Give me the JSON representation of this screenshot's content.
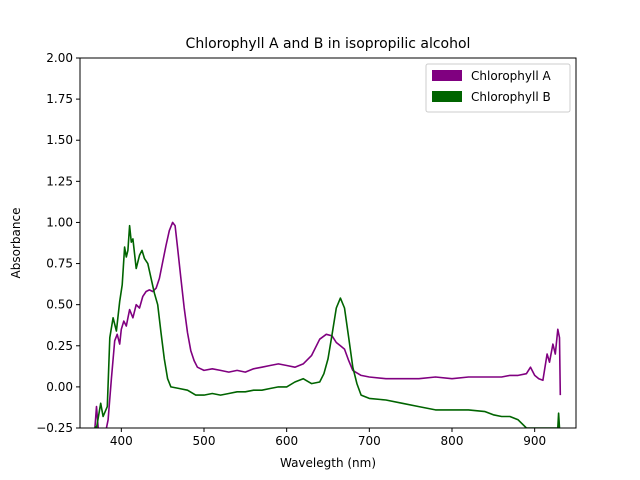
{
  "chart_data": {
    "type": "line",
    "title": "Chlorophyll A and B in isopropilic alcohol",
    "xlabel": "Wavelegth (nm)",
    "ylabel": "Absorbance",
    "xlim": [
      350,
      950
    ],
    "ylim": [
      -0.25,
      2.0
    ],
    "xticks": [
      400,
      500,
      600,
      700,
      800,
      900
    ],
    "yticks": [
      -0.25,
      0.0,
      0.25,
      0.5,
      0.75,
      1.0,
      1.25,
      1.5,
      1.75,
      2.0
    ],
    "ytick_labels": [
      "−0.25",
      "0.00",
      "0.25",
      "0.50",
      "0.75",
      "1.00",
      "1.25",
      "1.50",
      "1.75",
      "2.00"
    ],
    "grid": false,
    "legend_position": "top-right",
    "series": [
      {
        "name": "Chlorophyll A",
        "color": "#800080",
        "points": [
          [
            368,
            -0.25
          ],
          [
            370,
            -0.12
          ],
          [
            372,
            -0.25
          ],
          [
            380,
            -0.3
          ],
          [
            384,
            -0.2
          ],
          [
            388,
            0.05
          ],
          [
            392,
            0.28
          ],
          [
            395,
            0.32
          ],
          [
            398,
            0.26
          ],
          [
            400,
            0.35
          ],
          [
            403,
            0.4
          ],
          [
            406,
            0.37
          ],
          [
            410,
            0.47
          ],
          [
            414,
            0.42
          ],
          [
            418,
            0.5
          ],
          [
            422,
            0.48
          ],
          [
            426,
            0.55
          ],
          [
            430,
            0.58
          ],
          [
            434,
            0.59
          ],
          [
            438,
            0.58
          ],
          [
            442,
            0.6
          ],
          [
            446,
            0.66
          ],
          [
            450,
            0.76
          ],
          [
            454,
            0.86
          ],
          [
            458,
            0.95
          ],
          [
            462,
            1.0
          ],
          [
            465,
            0.98
          ],
          [
            468,
            0.85
          ],
          [
            472,
            0.66
          ],
          [
            476,
            0.48
          ],
          [
            480,
            0.33
          ],
          [
            484,
            0.22
          ],
          [
            488,
            0.16
          ],
          [
            492,
            0.12
          ],
          [
            496,
            0.11
          ],
          [
            500,
            0.1
          ],
          [
            510,
            0.11
          ],
          [
            520,
            0.1
          ],
          [
            530,
            0.09
          ],
          [
            540,
            0.1
          ],
          [
            550,
            0.09
          ],
          [
            560,
            0.11
          ],
          [
            570,
            0.12
          ],
          [
            580,
            0.13
          ],
          [
            590,
            0.14
          ],
          [
            600,
            0.13
          ],
          [
            610,
            0.12
          ],
          [
            620,
            0.14
          ],
          [
            630,
            0.19
          ],
          [
            640,
            0.29
          ],
          [
            648,
            0.32
          ],
          [
            655,
            0.31
          ],
          [
            660,
            0.27
          ],
          [
            665,
            0.25
          ],
          [
            670,
            0.23
          ],
          [
            675,
            0.16
          ],
          [
            680,
            0.1
          ],
          [
            690,
            0.07
          ],
          [
            700,
            0.06
          ],
          [
            720,
            0.05
          ],
          [
            740,
            0.05
          ],
          [
            760,
            0.05
          ],
          [
            780,
            0.06
          ],
          [
            800,
            0.05
          ],
          [
            820,
            0.06
          ],
          [
            840,
            0.06
          ],
          [
            860,
            0.06
          ],
          [
            870,
            0.07
          ],
          [
            880,
            0.07
          ],
          [
            890,
            0.08
          ],
          [
            895,
            0.12
          ],
          [
            900,
            0.07
          ],
          [
            905,
            0.05
          ],
          [
            910,
            0.04
          ],
          [
            915,
            0.2
          ],
          [
            918,
            0.15
          ],
          [
            922,
            0.26
          ],
          [
            925,
            0.2
          ],
          [
            928,
            0.35
          ],
          [
            930,
            0.3
          ],
          [
            931,
            -0.05
          ]
        ]
      },
      {
        "name": "Chlorophyll B",
        "color": "#006400",
        "points": [
          [
            368,
            -0.24
          ],
          [
            370,
            -0.25
          ],
          [
            375,
            -0.1
          ],
          [
            378,
            -0.18
          ],
          [
            383,
            -0.12
          ],
          [
            386,
            0.3
          ],
          [
            390,
            0.42
          ],
          [
            394,
            0.34
          ],
          [
            398,
            0.52
          ],
          [
            401,
            0.62
          ],
          [
            404,
            0.85
          ],
          [
            406,
            0.79
          ],
          [
            408,
            0.83
          ],
          [
            410,
            0.98
          ],
          [
            412,
            0.88
          ],
          [
            414,
            0.9
          ],
          [
            418,
            0.72
          ],
          [
            422,
            0.8
          ],
          [
            425,
            0.83
          ],
          [
            428,
            0.78
          ],
          [
            432,
            0.75
          ],
          [
            436,
            0.66
          ],
          [
            440,
            0.57
          ],
          [
            444,
            0.5
          ],
          [
            448,
            0.33
          ],
          [
            452,
            0.17
          ],
          [
            456,
            0.05
          ],
          [
            460,
            0.0
          ],
          [
            470,
            -0.01
          ],
          [
            480,
            -0.02
          ],
          [
            490,
            -0.05
          ],
          [
            500,
            -0.05
          ],
          [
            510,
            -0.04
          ],
          [
            520,
            -0.05
          ],
          [
            530,
            -0.04
          ],
          [
            540,
            -0.03
          ],
          [
            550,
            -0.03
          ],
          [
            560,
            -0.02
          ],
          [
            570,
            -0.02
          ],
          [
            580,
            -0.01
          ],
          [
            590,
            0.0
          ],
          [
            600,
            0.0
          ],
          [
            610,
            0.03
          ],
          [
            620,
            0.05
          ],
          [
            630,
            0.02
          ],
          [
            640,
            0.03
          ],
          [
            645,
            0.08
          ],
          [
            650,
            0.17
          ],
          [
            655,
            0.32
          ],
          [
            660,
            0.48
          ],
          [
            665,
            0.54
          ],
          [
            670,
            0.48
          ],
          [
            675,
            0.3
          ],
          [
            680,
            0.12
          ],
          [
            685,
            0.02
          ],
          [
            690,
            -0.05
          ],
          [
            700,
            -0.07
          ],
          [
            720,
            -0.08
          ],
          [
            740,
            -0.1
          ],
          [
            760,
            -0.12
          ],
          [
            780,
            -0.14
          ],
          [
            800,
            -0.14
          ],
          [
            820,
            -0.14
          ],
          [
            840,
            -0.15
          ],
          [
            850,
            -0.17
          ],
          [
            860,
            -0.18
          ],
          [
            870,
            -0.18
          ],
          [
            880,
            -0.2
          ],
          [
            890,
            -0.25
          ],
          [
            900,
            -0.25
          ],
          [
            910,
            -0.25
          ],
          [
            920,
            -0.25
          ],
          [
            928,
            -0.25
          ],
          [
            929,
            -0.16
          ],
          [
            930,
            -0.25
          ]
        ]
      }
    ]
  }
}
